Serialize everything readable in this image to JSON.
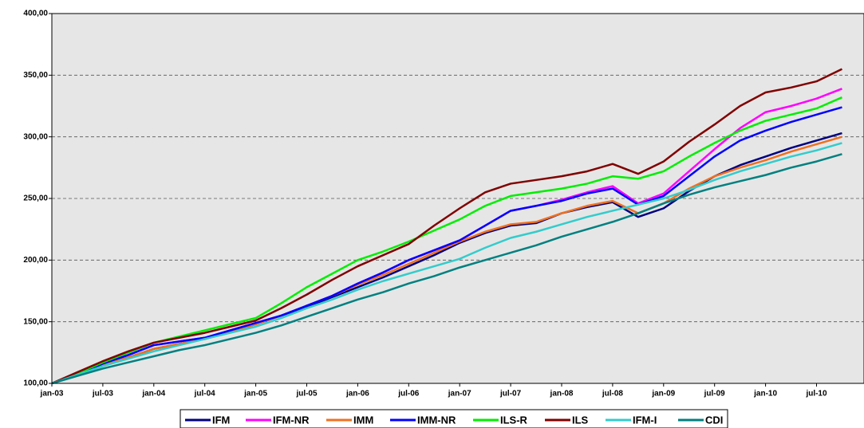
{
  "chart_data": {
    "type": "line",
    "categories": [
      "jan-03",
      null,
      "jul-03",
      null,
      "jan-04",
      null,
      "jul-04",
      null,
      "jan-05",
      null,
      "jul-05",
      null,
      "jan-06",
      null,
      "jul-06",
      null,
      "jan-07",
      null,
      "jul-07",
      null,
      "jan-08",
      null,
      "jul-08",
      null,
      "jan-09",
      null,
      "jul-09",
      null,
      "jan-10",
      null,
      "jul-10",
      null
    ],
    "ylim": [
      100,
      400
    ],
    "yticks": [
      {
        "value": 100,
        "label": "100,00"
      },
      {
        "value": 150,
        "label": "150,00"
      },
      {
        "value": 200,
        "label": "200,00"
      },
      {
        "value": 250,
        "label": "250,00"
      },
      {
        "value": 300,
        "label": "300,00"
      },
      {
        "value": 350,
        "label": "350,00"
      },
      {
        "value": 400,
        "label": "400,00"
      }
    ],
    "grid": true,
    "legend": "bottom",
    "series": [
      {
        "name": "IFM",
        "color": "#000080",
        "values": [
          100,
          107,
          115,
          121,
          128,
          132,
          136,
          142,
          148,
          155,
          162,
          170,
          178,
          186,
          195,
          204,
          214,
          222,
          228,
          230,
          238,
          243,
          247,
          235,
          242,
          256,
          268,
          277,
          284,
          291,
          297,
          303
        ]
      },
      {
        "name": "IFM-NR",
        "color": "#ff00ff",
        "values": [
          100,
          107,
          116,
          123,
          131,
          134,
          137,
          143,
          149,
          155,
          163,
          171,
          181,
          190,
          200,
          208,
          216,
          228,
          240,
          244,
          249,
          255,
          260,
          246,
          254,
          272,
          290,
          307,
          320,
          325,
          331,
          339
        ]
      },
      {
        "name": "IMM",
        "color": "#f07020",
        "values": [
          100,
          107,
          115,
          121,
          128,
          132,
          136,
          142,
          148,
          155,
          163,
          171,
          180,
          188,
          197,
          206,
          215,
          223,
          229,
          231,
          238,
          244,
          248,
          238,
          246,
          258,
          268,
          275,
          281,
          288,
          294,
          300
        ]
      },
      {
        "name": "IMM-NR",
        "color": "#0000ff",
        "values": [
          100,
          107,
          116,
          123,
          131,
          134,
          137,
          143,
          149,
          155,
          163,
          171,
          181,
          190,
          200,
          208,
          216,
          228,
          240,
          244,
          248,
          254,
          258,
          245,
          252,
          268,
          284,
          297,
          305,
          312,
          318,
          324
        ]
      },
      {
        "name": "ILS-R",
        "color": "#00ee00",
        "values": [
          100,
          108,
          117,
          125,
          133,
          138,
          143,
          148,
          153,
          165,
          178,
          189,
          200,
          207,
          215,
          224,
          233,
          244,
          252,
          255,
          258,
          262,
          268,
          266,
          272,
          284,
          295,
          305,
          313,
          318,
          323,
          332
        ]
      },
      {
        "name": "ILS",
        "color": "#800000",
        "values": [
          100,
          109,
          118,
          126,
          133,
          137,
          141,
          146,
          151,
          161,
          172,
          184,
          195,
          204,
          213,
          228,
          242,
          255,
          262,
          265,
          268,
          272,
          278,
          270,
          280,
          296,
          310,
          325,
          336,
          340,
          345,
          355
        ]
      },
      {
        "name": "IFM-I",
        "color": "#33cccc",
        "values": [
          100,
          107,
          114,
          120,
          126,
          131,
          136,
          141,
          146,
          153,
          161,
          168,
          176,
          183,
          189,
          195,
          201,
          210,
          218,
          223,
          229,
          235,
          240,
          245,
          250,
          257,
          265,
          272,
          278,
          284,
          289,
          295
        ]
      },
      {
        "name": "CDI",
        "color": "#008080",
        "values": [
          100,
          106,
          112,
          117,
          122,
          127,
          131,
          136,
          141,
          147,
          154,
          161,
          168,
          174,
          181,
          187,
          194,
          200,
          206,
          212,
          219,
          225,
          231,
          238,
          246,
          253,
          259,
          264,
          269,
          275,
          280,
          286
        ]
      }
    ]
  }
}
